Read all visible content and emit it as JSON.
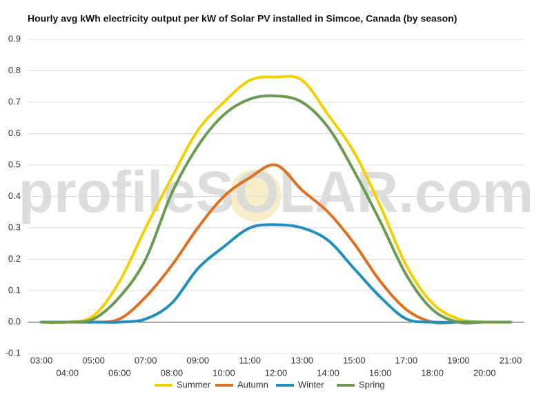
{
  "chart_data": {
    "type": "line",
    "title": "Hourly avg kWh electricity output per kW of Solar PV installed in Simcoe, Canada (by season)",
    "watermark": "profileSOLAR.com",
    "categories": [
      "03:00",
      "04:00",
      "05:00",
      "06:00",
      "07:00",
      "08:00",
      "09:00",
      "10:00",
      "11:00",
      "12:00",
      "13:00",
      "14:00",
      "15:00",
      "16:00",
      "17:00",
      "18:00",
      "19:00",
      "20:00",
      "21:00"
    ],
    "series": [
      {
        "name": "Summer",
        "color": "#f5d000",
        "values": [
          0,
          0,
          0.02,
          0.13,
          0.3,
          0.46,
          0.61,
          0.7,
          0.77,
          0.78,
          0.77,
          0.66,
          0.54,
          0.37,
          0.18,
          0.06,
          0.01,
          0,
          0
        ]
      },
      {
        "name": "Autumn",
        "color": "#e0701f",
        "values": [
          0,
          0,
          0,
          0.01,
          0.08,
          0.18,
          0.3,
          0.4,
          0.46,
          0.5,
          0.42,
          0.35,
          0.25,
          0.13,
          0.04,
          0,
          0,
          0,
          0
        ]
      },
      {
        "name": "Winter",
        "color": "#1f8fc0",
        "values": [
          0,
          0,
          0,
          0,
          0.01,
          0.06,
          0.17,
          0.24,
          0.3,
          0.31,
          0.3,
          0.26,
          0.17,
          0.08,
          0.01,
          0,
          0,
          0,
          0
        ]
      },
      {
        "name": "Spring",
        "color": "#6a9a50",
        "values": [
          0,
          0,
          0.01,
          0.08,
          0.2,
          0.41,
          0.56,
          0.66,
          0.71,
          0.72,
          0.7,
          0.62,
          0.48,
          0.32,
          0.15,
          0.04,
          0,
          0,
          0
        ]
      }
    ],
    "ylim": [
      -0.1,
      0.9
    ],
    "yticks": [
      -0.1,
      {
        "value": 0,
        "label": "0.0"
      },
      0.1,
      0.2,
      0.3,
      0.4,
      0.5,
      0.6,
      0.7,
      0.8,
      0.9
    ],
    "grid": true,
    "legend": "bottom"
  }
}
